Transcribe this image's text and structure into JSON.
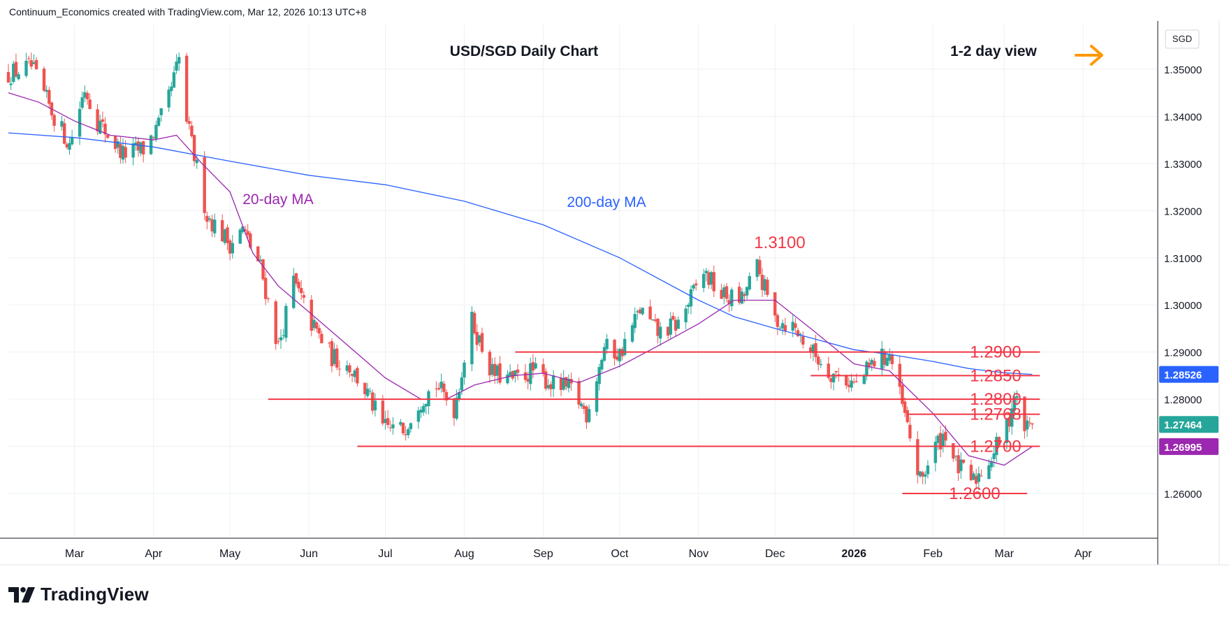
{
  "header": {
    "author": "Continuum_Economics",
    "created_with": "created with TradingView.com,",
    "timestamp": "Mar 12, 2026 10:13 UTC+8"
  },
  "branding": {
    "logo_text": "TradingView",
    "logo_icon": "tradingview-logo-icon"
  },
  "annotations": {
    "title": "USD/SGD Daily Chart",
    "view": "1-2 day view",
    "view_arrow_icon": "arrow-right-icon",
    "ma20_label": "20-day MA",
    "ma200_label": "200-day MA",
    "high_label": "1.3100"
  },
  "chart_data": {
    "type": "candlestick",
    "title": "USD/SGD Daily Chart",
    "currency": "SGD",
    "ylim": [
      1.2505,
      1.3595
    ],
    "y_ticks": [
      "1.35000",
      "1.34000",
      "1.33000",
      "1.32000",
      "1.31000",
      "1.30000",
      "1.29000",
      "1.28000",
      "1.27000",
      "1.26000"
    ],
    "y_tick_values": [
      1.35,
      1.34,
      1.33,
      1.32,
      1.31,
      1.3,
      1.29,
      1.28,
      1.27,
      1.26
    ],
    "x_range": [
      "2025-02-03",
      "2026-04-30"
    ],
    "x_ticks": [
      {
        "date": "2025-03-01",
        "label": "Mar"
      },
      {
        "date": "2025-04-01",
        "label": "Apr"
      },
      {
        "date": "2025-05-01",
        "label": "May"
      },
      {
        "date": "2025-06-01",
        "label": "Jun"
      },
      {
        "date": "2025-07-01",
        "label": "Jul"
      },
      {
        "date": "2025-08-01",
        "label": "Aug"
      },
      {
        "date": "2025-09-01",
        "label": "Sep"
      },
      {
        "date": "2025-10-01",
        "label": "Oct"
      },
      {
        "date": "2025-11-01",
        "label": "Nov"
      },
      {
        "date": "2025-12-01",
        "label": "Dec"
      },
      {
        "date": "2026-01-01",
        "label": "2026"
      },
      {
        "date": "2026-02-01",
        "label": "Feb"
      },
      {
        "date": "2026-03-01",
        "label": "Mar"
      },
      {
        "date": "2026-04-01",
        "label": "Apr"
      }
    ],
    "horizontal_levels": [
      {
        "value": 1.29,
        "label": "1.2900",
        "from": "2025-08-21",
        "to": "2026-03-15"
      },
      {
        "value": 1.285,
        "label": "1.2850",
        "from": "2025-12-15",
        "to": "2026-03-15"
      },
      {
        "value": 1.28,
        "label": "1.2800",
        "from": "2025-05-16",
        "to": "2026-03-15"
      },
      {
        "value": 1.2768,
        "label": "1.2768",
        "from": "2026-01-22",
        "to": "2026-03-15"
      },
      {
        "value": 1.27,
        "label": "1.2700",
        "from": "2025-06-20",
        "to": "2026-03-15"
      },
      {
        "value": 1.26,
        "label": "1.2600",
        "from": "2026-01-20",
        "to": "2026-03-10"
      }
    ],
    "price_badges": [
      {
        "value": 1.28526,
        "label": "1.28526",
        "color": "#2962ff"
      },
      {
        "value": 1.27464,
        "label": "1.27464",
        "color": "#26a69a"
      },
      {
        "value": 1.26995,
        "label": "1.26995",
        "color": "#9c27b0"
      }
    ],
    "ma200": {
      "name": "200-day MA",
      "color": "#2962ff",
      "points": [
        [
          "2025-02-03",
          1.3365
        ],
        [
          "2025-03-01",
          1.3355
        ],
        [
          "2025-04-01",
          1.3335
        ],
        [
          "2025-05-01",
          1.3305
        ],
        [
          "2025-06-01",
          1.3275
        ],
        [
          "2025-07-01",
          1.3255
        ],
        [
          "2025-08-01",
          1.322
        ],
        [
          "2025-09-01",
          1.317
        ],
        [
          "2025-10-01",
          1.31
        ],
        [
          "2025-11-01",
          1.301
        ],
        [
          "2025-11-15",
          1.2975
        ],
        [
          "2025-12-01",
          1.295
        ],
        [
          "2025-12-15",
          1.293
        ],
        [
          "2026-01-01",
          1.2905
        ],
        [
          "2026-01-15",
          1.2895
        ],
        [
          "2026-02-01",
          1.288
        ],
        [
          "2026-02-15",
          1.2865
        ],
        [
          "2026-03-01",
          1.2856
        ],
        [
          "2026-03-12",
          1.28526
        ]
      ]
    },
    "ma20": {
      "name": "20-day MA",
      "color": "#9c27b0",
      "points": [
        [
          "2025-02-03",
          1.345
        ],
        [
          "2025-02-15",
          1.343
        ],
        [
          "2025-03-01",
          1.339
        ],
        [
          "2025-03-15",
          1.336
        ],
        [
          "2025-04-01",
          1.335
        ],
        [
          "2025-04-10",
          1.336
        ],
        [
          "2025-04-20",
          1.33
        ],
        [
          "2025-05-01",
          1.324
        ],
        [
          "2025-05-10",
          1.311
        ],
        [
          "2025-05-20",
          1.304
        ],
        [
          "2025-06-01",
          1.2985
        ],
        [
          "2025-06-15",
          1.292
        ],
        [
          "2025-07-01",
          1.2845
        ],
        [
          "2025-07-15",
          1.28
        ],
        [
          "2025-07-25",
          1.28
        ],
        [
          "2025-08-05",
          1.283
        ],
        [
          "2025-08-20",
          1.285
        ],
        [
          "2025-09-01",
          1.2855
        ],
        [
          "2025-09-15",
          1.2835
        ],
        [
          "2025-10-01",
          1.287
        ],
        [
          "2025-10-15",
          1.291
        ],
        [
          "2025-11-01",
          1.296
        ],
        [
          "2025-11-15",
          1.301
        ],
        [
          "2025-12-01",
          1.301
        ],
        [
          "2025-12-15",
          1.295
        ],
        [
          "2026-01-01",
          1.2875
        ],
        [
          "2026-01-15",
          1.286
        ],
        [
          "2026-02-01",
          1.277
        ],
        [
          "2026-02-15",
          1.268
        ],
        [
          "2026-03-01",
          1.266
        ],
        [
          "2026-03-12",
          1.26995
        ]
      ]
    },
    "candle_colors": {
      "up": "#26a69a",
      "down": "#ef5350"
    },
    "candle_path": [
      [
        "2025-02-03",
        1.349
      ],
      [
        "2025-02-12",
        1.3505
      ],
      [
        "2025-02-20",
        1.341
      ],
      [
        "2025-02-27",
        1.334
      ],
      [
        "2025-03-05",
        1.346
      ],
      [
        "2025-03-10",
        1.339
      ],
      [
        "2025-03-20",
        1.332
      ],
      [
        "2025-03-28",
        1.333
      ],
      [
        "2025-04-03",
        1.338
      ],
      [
        "2025-04-07",
        1.344
      ],
      [
        "2025-04-11",
        1.352
      ],
      [
        "2025-04-14",
        1.339
      ],
      [
        "2025-04-22",
        1.319
      ],
      [
        "2025-05-01",
        1.313
      ],
      [
        "2025-05-06",
        1.316
      ],
      [
        "2025-05-13",
        1.308
      ],
      [
        "2025-05-20",
        1.291
      ],
      [
        "2025-05-26",
        1.305
      ],
      [
        "2025-06-02",
        1.296
      ],
      [
        "2025-06-10",
        1.289
      ],
      [
        "2025-06-17",
        1.287
      ],
      [
        "2025-06-24",
        1.281
      ],
      [
        "2025-06-30",
        1.274
      ],
      [
        "2025-07-08",
        1.2735
      ],
      [
        "2025-07-14",
        1.2795
      ],
      [
        "2025-07-21",
        1.283
      ],
      [
        "2025-07-28",
        1.278
      ],
      [
        "2025-08-04",
        1.2965
      ],
      [
        "2025-08-12",
        1.2855
      ],
      [
        "2025-08-20",
        1.284
      ],
      [
        "2025-08-28",
        1.286
      ],
      [
        "2025-09-05",
        1.283
      ],
      [
        "2025-09-12",
        1.282
      ],
      [
        "2025-09-18",
        1.277
      ],
      [
        "2025-09-25",
        1.291
      ],
      [
        "2025-10-01",
        1.2895
      ],
      [
        "2025-10-09",
        1.299
      ],
      [
        "2025-10-16",
        1.294
      ],
      [
        "2025-10-24",
        1.296
      ],
      [
        "2025-11-03",
        1.307
      ],
      [
        "2025-11-10",
        1.302
      ],
      [
        "2025-11-18",
        1.301
      ],
      [
        "2025-11-24",
        1.308
      ],
      [
        "2025-12-01",
        1.297
      ],
      [
        "2025-12-08",
        1.2955
      ],
      [
        "2025-12-15",
        1.2905
      ],
      [
        "2025-12-22",
        1.286
      ],
      [
        "2026-01-02",
        1.283
      ],
      [
        "2026-01-09",
        1.288
      ],
      [
        "2026-01-15",
        1.2895
      ],
      [
        "2026-01-22",
        1.274
      ],
      [
        "2026-01-27",
        1.2625
      ],
      [
        "2026-02-02",
        1.27
      ],
      [
        "2026-02-06",
        1.273
      ],
      [
        "2026-02-10",
        1.266
      ],
      [
        "2026-02-17",
        1.2625
      ],
      [
        "2026-02-24",
        1.268
      ],
      [
        "2026-03-02",
        1.274
      ],
      [
        "2026-03-05",
        1.281
      ],
      [
        "2026-03-09",
        1.274
      ],
      [
        "2026-03-12",
        1.27464
      ]
    ]
  }
}
